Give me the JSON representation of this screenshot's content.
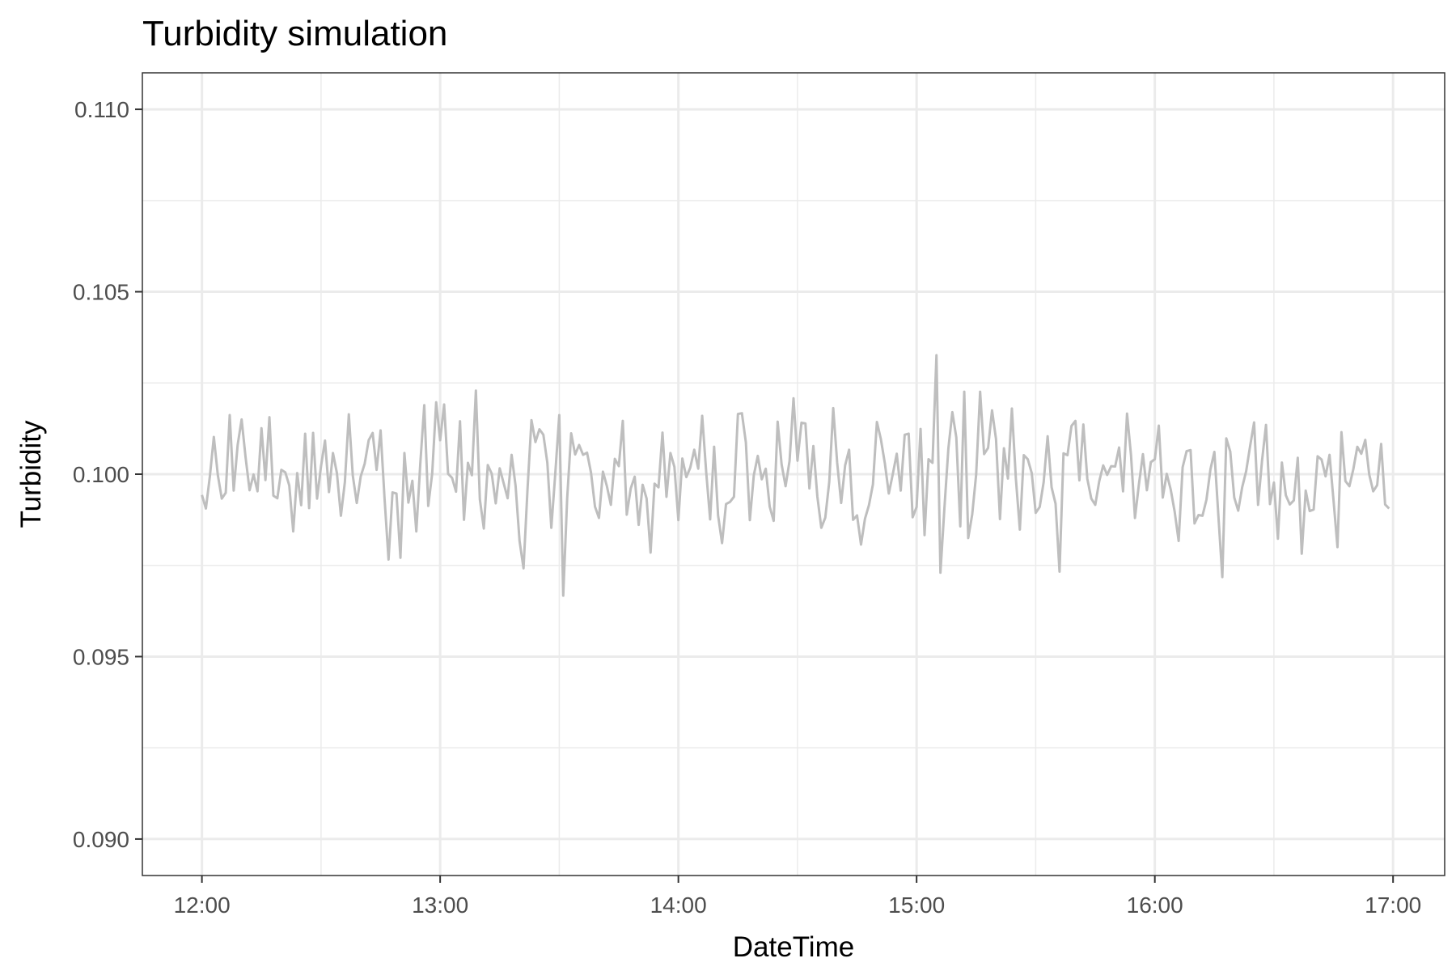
{
  "chart_data": {
    "type": "line",
    "title": "Turbidity simulation",
    "xlabel": "DateTime",
    "ylabel": "Turbidity",
    "xlim": [
      "11:45",
      "17:13"
    ],
    "ylim": [
      0.089,
      0.111
    ],
    "x_ticks": [
      "12:00",
      "13:00",
      "14:00",
      "15:00",
      "16:00",
      "17:00"
    ],
    "y_ticks": [
      "0.090",
      "0.095",
      "0.100",
      "0.105",
      "0.110"
    ],
    "grid": true,
    "legend": "none",
    "line_color": "#bebebe",
    "x_start": "12:00",
    "x_step_minutes": 1,
    "values": [
      0.09943,
      0.09906,
      0.09994,
      0.10102,
      0.09998,
      0.09933,
      0.09949,
      0.10162,
      0.09955,
      0.1008,
      0.1015,
      0.10046,
      0.09956,
      0.09999,
      0.09953,
      0.10126,
      0.09984,
      0.10156,
      0.09941,
      0.09934,
      0.10012,
      0.10005,
      0.09969,
      0.09843,
      0.10003,
      0.09915,
      0.10111,
      0.09907,
      0.10113,
      0.09933,
      0.10022,
      0.10092,
      0.09951,
      0.10058,
      0.10003,
      0.09886,
      0.09978,
      0.10164,
      0.09996,
      0.09921,
      0.09994,
      0.10029,
      0.10093,
      0.10113,
      0.10012,
      0.1012,
      0.09933,
      0.09766,
      0.0995,
      0.09947,
      0.09771,
      0.10058,
      0.09922,
      0.09982,
      0.09843,
      0.10029,
      0.10189,
      0.09913,
      0.10002,
      0.10197,
      0.10093,
      0.10191,
      0.10001,
      0.0999,
      0.09952,
      0.10145,
      0.09875,
      0.10031,
      0.09997,
      0.10229,
      0.09931,
      0.09851,
      0.10025,
      0.10001,
      0.0992,
      0.10016,
      0.09975,
      0.09934,
      0.10053,
      0.09968,
      0.09817,
      0.09742,
      0.09958,
      0.10148,
      0.10088,
      0.10123,
      0.10108,
      0.10031,
      0.09853,
      0.10002,
      0.10162,
      0.09667,
      0.09935,
      0.10112,
      0.10054,
      0.1008,
      0.10053,
      0.10059,
      0.10004,
      0.09911,
      0.0988,
      0.10007,
      0.09967,
      0.09916,
      0.10042,
      0.10022,
      0.10146,
      0.09889,
      0.09961,
      0.09993,
      0.09861,
      0.09971,
      0.09933,
      0.09785,
      0.09974,
      0.09964,
      0.10114,
      0.09938,
      0.10058,
      0.1002,
      0.09874,
      0.10043,
      0.09992,
      0.10018,
      0.10067,
      0.10015,
      0.1016,
      0.10007,
      0.09876,
      0.10075,
      0.09887,
      0.09811,
      0.09918,
      0.09924,
      0.09938,
      0.10165,
      0.10167,
      0.10087,
      0.09874,
      0.09997,
      0.1005,
      0.09986,
      0.10015,
      0.09911,
      0.09872,
      0.10144,
      0.10027,
      0.09967,
      0.10036,
      0.10208,
      0.10037,
      0.10141,
      0.10139,
      0.09961,
      0.10077,
      0.09939,
      0.09853,
      0.09881,
      0.09979,
      0.10181,
      0.10031,
      0.09921,
      0.10024,
      0.10067,
      0.09875,
      0.09887,
      0.09807,
      0.09878,
      0.09915,
      0.09972,
      0.10143,
      0.10096,
      0.1003,
      0.09947,
      0.1,
      0.10056,
      0.09955,
      0.10108,
      0.10111,
      0.09882,
      0.0991,
      0.10124,
      0.09833,
      0.10041,
      0.10031,
      0.10326,
      0.0973,
      0.09906,
      0.1007,
      0.1017,
      0.10101,
      0.09857,
      0.10226,
      0.09825,
      0.09889,
      0.09999,
      0.10226,
      0.10055,
      0.10072,
      0.10175,
      0.10096,
      0.09877,
      0.10071,
      0.09988,
      0.1018,
      0.09988,
      0.09848,
      0.10052,
      0.10041,
      0.10003,
      0.09894,
      0.0991,
      0.09978,
      0.10104,
      0.09964,
      0.09919,
      0.09733,
      0.10057,
      0.10052,
      0.10132,
      0.10146,
      0.09983,
      0.10136,
      0.09987,
      0.09933,
      0.09916,
      0.09981,
      0.10024,
      0.09998,
      0.10022,
      0.10021,
      0.10073,
      0.09953,
      0.10166,
      0.10052,
      0.0988,
      0.09973,
      0.10055,
      0.09956,
      0.10033,
      0.10041,
      0.10133,
      0.09936,
      0.10001,
      0.09958,
      0.09897,
      0.09817,
      0.10019,
      0.10063,
      0.10066,
      0.09865,
      0.09888,
      0.09886,
      0.0993,
      0.10013,
      0.10061,
      0.09887,
      0.09718,
      0.10098,
      0.10062,
      0.09936,
      0.099,
      0.09964,
      0.10008,
      0.10077,
      0.10142,
      0.09916,
      0.10037,
      0.10135,
      0.09918,
      0.09977,
      0.09823,
      0.10032,
      0.09942,
      0.09917,
      0.09928,
      0.10045,
      0.09782,
      0.09955,
      0.09899,
      0.09903,
      0.10049,
      0.1004,
      0.09994,
      0.10053,
      0.09929,
      0.098,
      0.10115,
      0.09981,
      0.09967,
      0.10014,
      0.10075,
      0.10056,
      0.10094,
      0.09999,
      0.09953,
      0.0997,
      0.10083,
      0.09917,
      0.09906
    ]
  }
}
